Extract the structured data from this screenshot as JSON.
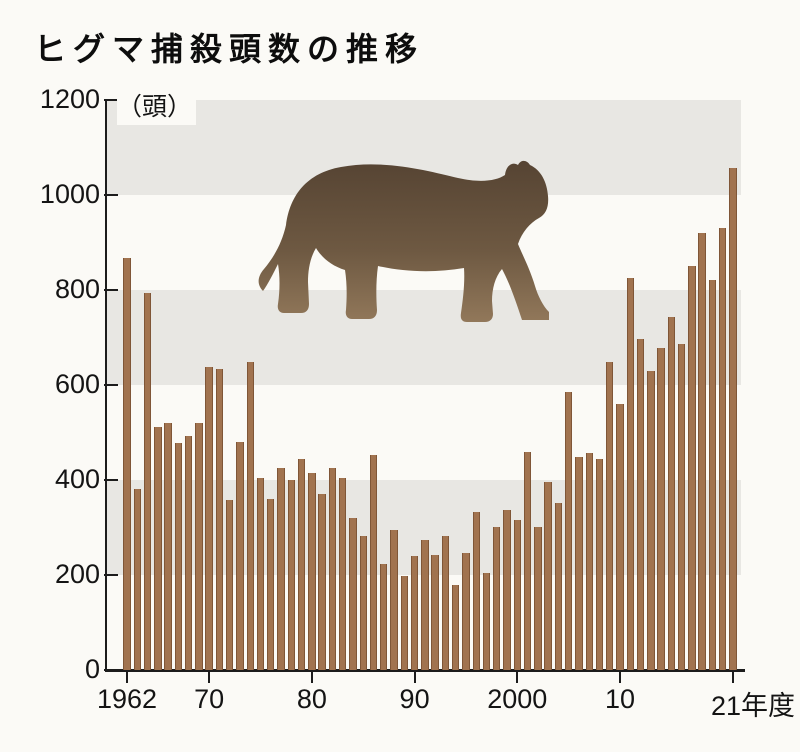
{
  "title": "ヒグマ捕殺頭数の推移",
  "unit_label": "（頭）",
  "colors": {
    "bar": "#a1734f",
    "bar_edge": "#7f5637",
    "band": "#e8e7e3",
    "axis": "#1c1c1c",
    "background": "#fbfaf6",
    "bear_top": "#564433",
    "bear_bottom": "#93795b"
  },
  "chart_data": {
    "type": "bar",
    "title": "ヒグマ捕殺頭数の推移",
    "ylabel": "頭",
    "ylim": [
      0,
      1200
    ],
    "yticks": [
      0,
      200,
      400,
      600,
      800,
      1000,
      1200
    ],
    "grid_bands": [
      [
        200,
        400
      ],
      [
        600,
        800
      ],
      [
        1000,
        1200
      ]
    ],
    "legend": "none",
    "xticks": [
      {
        "year": 1962,
        "label": "1962"
      },
      {
        "year": 1970,
        "label": "70"
      },
      {
        "year": 1980,
        "label": "80"
      },
      {
        "year": 1990,
        "label": "90"
      },
      {
        "year": 2000,
        "label": "2000"
      },
      {
        "year": 2010,
        "label": "10"
      },
      {
        "year": 2021,
        "label": "21年度"
      }
    ],
    "categories": [
      1962,
      1963,
      1964,
      1965,
      1966,
      1967,
      1968,
      1969,
      1970,
      1971,
      1972,
      1973,
      1974,
      1975,
      1976,
      1977,
      1978,
      1979,
      1980,
      1981,
      1982,
      1983,
      1984,
      1985,
      1986,
      1987,
      1988,
      1989,
      1990,
      1991,
      1992,
      1993,
      1994,
      1995,
      1996,
      1997,
      1998,
      1999,
      2000,
      2001,
      2002,
      2003,
      2004,
      2005,
      2006,
      2007,
      2008,
      2009,
      2010,
      2011,
      2012,
      2013,
      2014,
      2015,
      2016,
      2017,
      2018,
      2019,
      2020,
      2021
    ],
    "values": [
      868,
      382,
      794,
      512,
      519,
      478,
      493,
      521,
      638,
      633,
      358,
      481,
      648,
      404,
      361,
      425,
      400,
      445,
      415,
      370,
      425,
      405,
      320,
      282,
      452,
      224,
      295,
      198,
      239,
      274,
      242,
      282,
      179,
      246,
      333,
      204,
      302,
      337,
      316,
      460,
      302,
      395,
      351,
      586,
      449,
      456,
      444,
      649,
      561,
      826,
      697,
      630,
      677,
      744,
      686,
      850,
      919,
      822,
      930,
      1056
    ]
  }
}
